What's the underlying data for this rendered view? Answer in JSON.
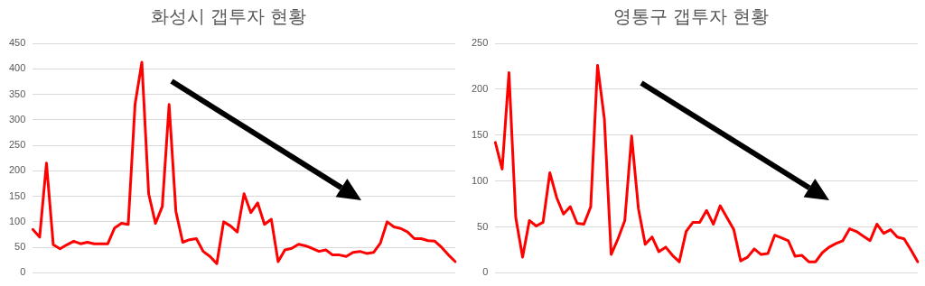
{
  "chart_data": [
    {
      "type": "line",
      "title": "화성시 갭투자 현황",
      "categories": [
        null,
        null,
        null,
        null,
        null,
        null,
        null,
        null,
        null,
        null,
        null,
        null,
        null,
        null,
        null,
        null,
        null,
        null,
        null,
        null,
        null,
        null,
        null,
        null,
        null,
        null,
        null,
        null,
        null,
        null,
        null,
        null,
        null,
        null,
        null,
        null,
        null,
        null,
        null,
        null,
        null,
        null,
        null,
        null,
        null,
        null,
        null,
        null,
        null,
        null,
        null,
        null,
        null,
        null,
        null,
        null,
        null,
        null,
        null,
        null,
        null,
        null,
        null
      ],
      "series": [
        {
          "color": "#ff0000",
          "values": [
            85,
            70,
            215,
            55,
            47,
            55,
            62,
            57,
            60,
            57,
            57,
            57,
            88,
            97,
            95,
            330,
            413,
            155,
            97,
            130,
            330,
            120,
            60,
            65,
            67,
            42,
            32,
            18,
            100,
            92,
            80,
            155,
            118,
            137,
            95,
            105,
            22,
            45,
            48,
            56,
            53,
            48,
            42,
            45,
            35,
            35,
            32,
            40,
            42,
            38,
            40,
            58,
            100,
            90,
            87,
            80,
            67,
            67,
            63,
            62,
            50,
            35,
            22
          ]
        }
      ],
      "ylim": [
        0,
        450
      ],
      "yticks": [
        0,
        50,
        100,
        150,
        200,
        250,
        300,
        350,
        400,
        450
      ],
      "grid": "y",
      "tick_labels": "y",
      "marker": "none",
      "line_style": "solid"
    },
    {
      "type": "line",
      "title": "영통구 갭투자 현황",
      "categories": [
        null,
        null,
        null,
        null,
        null,
        null,
        null,
        null,
        null,
        null,
        null,
        null,
        null,
        null,
        null,
        null,
        null,
        null,
        null,
        null,
        null,
        null,
        null,
        null,
        null,
        null,
        null,
        null,
        null,
        null,
        null,
        null,
        null,
        null,
        null,
        null,
        null,
        null,
        null,
        null,
        null,
        null,
        null,
        null,
        null,
        null,
        null,
        null,
        null,
        null,
        null,
        null,
        null,
        null,
        null,
        null,
        null,
        null,
        null,
        null,
        null,
        null,
        null
      ],
      "series": [
        {
          "color": "#ff0000",
          "values": [
            142,
            113,
            218,
            60,
            17,
            57,
            51,
            55,
            109,
            82,
            64,
            72,
            54,
            53,
            72,
            226,
            168,
            20,
            37,
            57,
            149,
            70,
            31,
            39,
            23,
            28,
            19,
            12,
            45,
            55,
            55,
            68,
            53,
            73,
            60,
            47,
            13,
            17,
            26,
            20,
            21,
            41,
            38,
            35,
            18,
            19,
            12,
            12,
            22,
            28,
            32,
            35,
            48,
            45,
            40,
            35,
            53,
            43,
            47,
            39,
            37,
            25,
            12
          ]
        }
      ],
      "ylim": [
        0,
        250
      ],
      "yticks": [
        0,
        50,
        100,
        150,
        200,
        250
      ],
      "grid": "y",
      "tick_labels": "y",
      "marker": "none",
      "line_style": "solid"
    }
  ]
}
